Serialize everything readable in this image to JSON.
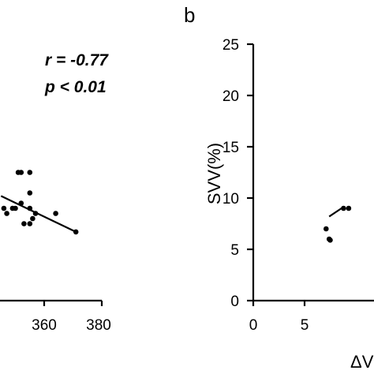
{
  "chart_data": [
    {
      "type": "scatter",
      "panel_label": "",
      "annotations": [
        "r = -0.77",
        "p < 0.01"
      ],
      "xlabel": "",
      "ylabel": "",
      "xlim": [
        340,
        380
      ],
      "ylim": [
        0,
        25
      ],
      "x_ticks": [
        "360",
        "380"
      ],
      "grid": false,
      "points": [
        {
          "x": 351,
          "y": 12.5
        },
        {
          "x": 352,
          "y": 12.5
        },
        {
          "x": 355,
          "y": 12.5
        },
        {
          "x": 346,
          "y": 9
        },
        {
          "x": 347,
          "y": 8.5
        },
        {
          "x": 349,
          "y": 9
        },
        {
          "x": 350,
          "y": 9
        },
        {
          "x": 352,
          "y": 9.5
        },
        {
          "x": 355,
          "y": 10.5
        },
        {
          "x": 355,
          "y": 9
        },
        {
          "x": 353,
          "y": 7.5
        },
        {
          "x": 356,
          "y": 8
        },
        {
          "x": 357,
          "y": 8.5
        },
        {
          "x": 355,
          "y": 7.5
        },
        {
          "x": 364,
          "y": 8.5
        },
        {
          "x": 371,
          "y": 6.7
        }
      ],
      "fit_line": [
        [
          345,
          10.2
        ],
        [
          371,
          6.7
        ]
      ]
    },
    {
      "type": "scatter",
      "panel_label": "b",
      "xlabel": "ΔV",
      "ylabel": "SVV(%)",
      "xlim": [
        0,
        12
      ],
      "ylim": [
        0,
        25
      ],
      "x_ticks": [
        "0",
        "5"
      ],
      "y_ticks": [
        "0",
        "5",
        "10",
        "15",
        "20",
        "25"
      ],
      "grid": false,
      "points": [
        {
          "x": 7.1,
          "y": 7
        },
        {
          "x": 7.4,
          "y": 6
        },
        {
          "x": 7.5,
          "y": 5.9
        },
        {
          "x": 8.8,
          "y": 9
        },
        {
          "x": 9.3,
          "y": 9
        }
      ],
      "fit_line": [
        [
          7.4,
          8.2
        ],
        [
          8.6,
          9
        ]
      ]
    }
  ]
}
